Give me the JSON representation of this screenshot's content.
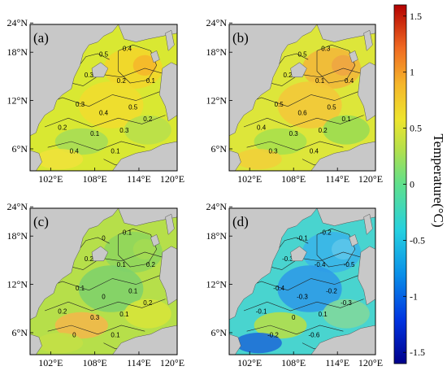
{
  "figure": {
    "colormap_low": "#00008b",
    "colormap_high": "#b30000",
    "land_color": "#c8c8c8",
    "axis_ticks": {
      "lat": [
        "6°N",
        "12°N",
        "18°N",
        "24°N"
      ],
      "lon": [
        "102°E",
        "108°E",
        "114°E",
        "120°E"
      ]
    },
    "panels": [
      {
        "label": "(a)",
        "base_color": "#d9e832",
        "patches": [
          {
            "color": "#f2d62a"
          },
          {
            "color": "#f5b82a"
          },
          {
            "color": "#f0dd2e"
          },
          {
            "color": "#b8e04a"
          },
          {
            "color": "#a6dd55"
          },
          {
            "color": "#eee23a"
          }
        ],
        "contour_labels": [
          "0.5",
          "0.4",
          "0.3",
          "0.2",
          "0.1",
          "0.3",
          "0.4",
          "0.5",
          "0.2",
          "0.1",
          "0.3",
          "0.2",
          "0.4",
          "0.1"
        ]
      },
      {
        "label": "(b)",
        "base_color": "#dde63a",
        "patches": [
          {
            "color": "#f2b83a"
          },
          {
            "color": "#eea542"
          },
          {
            "color": "#f3c83a"
          },
          {
            "color": "#9bdb52"
          },
          {
            "color": "#a9e04c"
          },
          {
            "color": "#f1d03a"
          }
        ],
        "contour_labels": [
          "0.5",
          "0.3",
          "0.2",
          "0.1",
          "0.4",
          "0.5",
          "0.6",
          "0.5",
          "0.4",
          "0.3",
          "0.2",
          "0.1",
          "0.3",
          "0.4"
        ]
      },
      {
        "label": "(c)",
        "base_color": "#b6df4a",
        "patches": [
          {
            "color": "#8fd65c"
          },
          {
            "color": "#a4dc52"
          },
          {
            "color": "#7fd26a"
          },
          {
            "color": "#d6e43a"
          },
          {
            "color": "#f2b84a"
          },
          {
            "color": "#c3e046"
          }
        ],
        "contour_labels": [
          "0",
          "0.1",
          "0.2",
          "0.1",
          "0.2",
          "0.1",
          "0",
          "0.1",
          "0.2",
          "0.3",
          "0.1",
          "0.2",
          "0",
          "0.1"
        ]
      },
      {
        "label": "(d)",
        "base_color": "#49d4cf",
        "patches": [
          {
            "color": "#3ab5e8"
          },
          {
            "color": "#5cc5ea"
          },
          {
            "color": "#2f9be6"
          },
          {
            "color": "#7fd89c"
          },
          {
            "color": "#b4df4a"
          },
          {
            "color": "#1f6fd6"
          }
        ],
        "contour_labels": [
          "-0.1",
          "-0.2",
          "-0.3",
          "-0.4",
          "-0.5",
          "-0.4",
          "-0.3",
          "-0.2",
          "-0.1",
          "0",
          "0.1",
          "-0.3",
          "-0.2",
          "-0.6"
        ]
      }
    ],
    "colorbar": {
      "title": "Temperature(°C)",
      "ticks": [
        "1.5",
        "1",
        "0.5",
        "0",
        "-0.5",
        "-1",
        "-1.5"
      ],
      "values": [
        1.5,
        1,
        0.5,
        0,
        -0.5,
        -1,
        -1.5
      ],
      "range": [
        -1.6,
        1.6
      ]
    }
  }
}
